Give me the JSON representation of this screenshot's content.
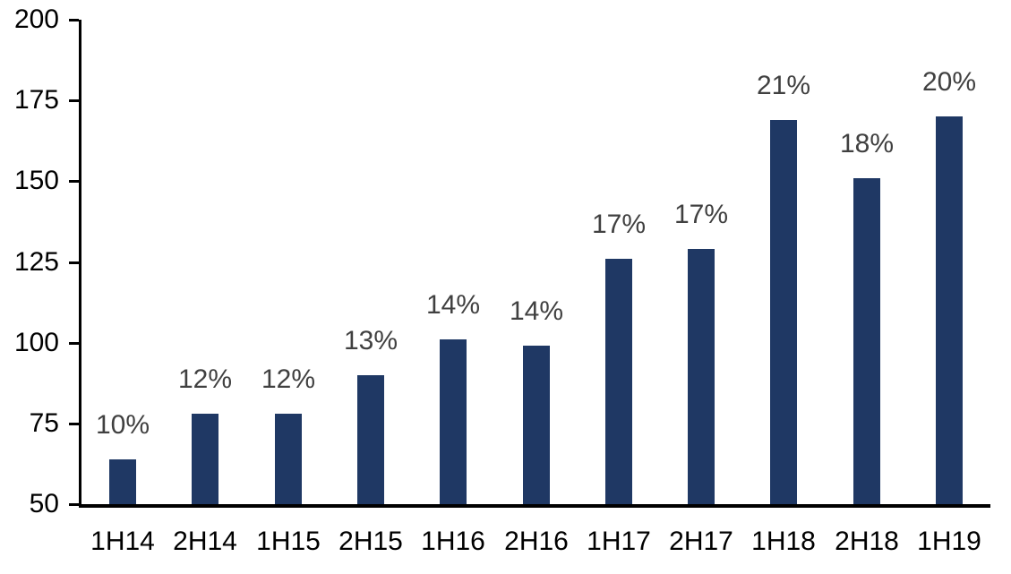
{
  "chart_data": {
    "type": "bar",
    "title": "",
    "xlabel": "",
    "ylabel": "",
    "categories": [
      "1H14",
      "2H14",
      "1H15",
      "2H15",
      "1H16",
      "2H16",
      "1H17",
      "2H17",
      "1H18",
      "2H18",
      "1H19"
    ],
    "values": [
      64,
      78,
      78,
      90,
      101,
      99,
      126,
      129,
      169,
      151,
      170
    ],
    "bar_labels": [
      "10%",
      "12%",
      "12%",
      "13%",
      "14%",
      "14%",
      "17%",
      "17%",
      "21%",
      "18%",
      "20%"
    ],
    "yticks": [
      50,
      75,
      100,
      125,
      150,
      175,
      200
    ],
    "ylim": [
      50,
      200
    ],
    "grid": false,
    "legend": false,
    "colors": {
      "bar": "#1F3864",
      "bar_label": "#404040",
      "axis": "#000000",
      "tick_label": "#000000",
      "background": "#FFFFFF"
    }
  }
}
